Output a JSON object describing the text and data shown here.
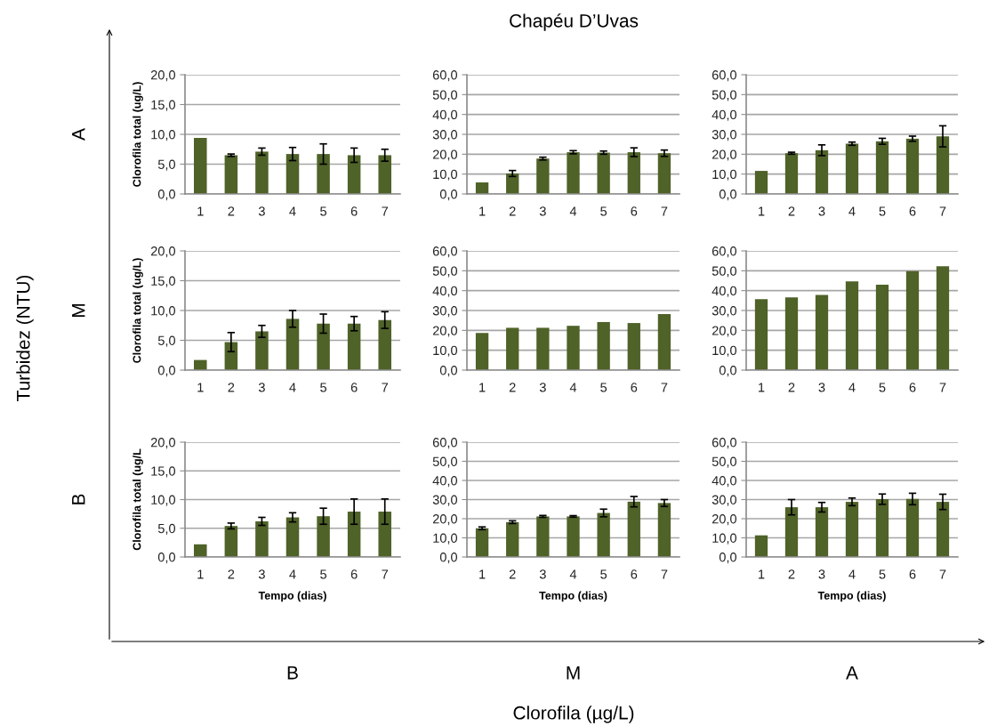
{
  "chart_data": [
    {
      "type": "bar",
      "ylabel": "Clorofila total (ug/L)",
      "categories": [
        "1",
        "2",
        "3",
        "4",
        "5",
        "6",
        "7"
      ],
      "color": "#4f6228",
      "grid": "y",
      "values": [
        9.4,
        6.5,
        7.1,
        6.7,
        6.7,
        6.5,
        6.5
      ],
      "errors": [
        null,
        0.2,
        0.6,
        1.1,
        1.7,
        1.2,
        1.0
      ],
      "ylim": [
        0,
        20
      ],
      "yticks": [
        {
          "value": 0,
          "label": "0,0"
        },
        {
          "value": 5,
          "label": "5,0"
        },
        {
          "value": 10,
          "label": "10,0"
        },
        {
          "value": 15,
          "label": "15,0"
        },
        {
          "value": 20,
          "label": "20,0"
        }
      ]
    },
    {
      "type": "bar",
      "categories": [
        "1",
        "2",
        "3",
        "4",
        "5",
        "6",
        "7"
      ],
      "color": "#4f6228",
      "grid": "y",
      "values": [
        5.8,
        10.3,
        17.8,
        21.0,
        20.8,
        21.0,
        20.5
      ],
      "errors": [
        null,
        1.5,
        0.7,
        0.8,
        0.8,
        2.2,
        1.6
      ],
      "ylim": [
        0,
        60
      ],
      "yticks": [
        {
          "value": 0,
          "label": "0,0"
        },
        {
          "value": 10,
          "label": "10,0"
        },
        {
          "value": 20,
          "label": "20,0"
        },
        {
          "value": 30,
          "label": "30,0"
        },
        {
          "value": 40,
          "label": "40,0"
        },
        {
          "value": 50,
          "label": "50,0"
        },
        {
          "value": 60,
          "label": "60,0"
        }
      ]
    },
    {
      "type": "bar",
      "categories": [
        "1",
        "2",
        "3",
        "4",
        "5",
        "6",
        "7"
      ],
      "color": "#4f6228",
      "grid": "y",
      "values": [
        11.6,
        20.5,
        22.0,
        25.3,
        26.5,
        27.8,
        29.0
      ],
      "errors": [
        null,
        0.5,
        2.7,
        0.8,
        1.5,
        1.3,
        5.3
      ],
      "ylim": [
        0,
        60
      ],
      "yticks": [
        {
          "value": 0,
          "label": "0,0"
        },
        {
          "value": 10,
          "label": "10,0"
        },
        {
          "value": 20,
          "label": "20,0"
        },
        {
          "value": 30,
          "label": "30,0"
        },
        {
          "value": 40,
          "label": "40,0"
        },
        {
          "value": 50,
          "label": "50,0"
        },
        {
          "value": 60,
          "label": "60,0"
        }
      ]
    },
    {
      "type": "bar",
      "ylabel": "Clorofila total (ug/L)",
      "categories": [
        "1",
        "2",
        "3",
        "4",
        "5",
        "6",
        "7"
      ],
      "color": "#4f6228",
      "grid": "y",
      "values": [
        1.7,
        4.7,
        6.5,
        8.6,
        7.8,
        7.8,
        8.4
      ],
      "errors": [
        null,
        1.6,
        1.0,
        1.4,
        1.6,
        1.2,
        1.4
      ],
      "ylim": [
        0,
        20
      ],
      "yticks": [
        {
          "value": 0,
          "label": "0,0"
        },
        {
          "value": 5,
          "label": "5,0"
        },
        {
          "value": 10,
          "label": "10,0"
        },
        {
          "value": 15,
          "label": "15,0"
        },
        {
          "value": 20,
          "label": "20,0"
        }
      ]
    },
    {
      "type": "bar",
      "categories": [
        "1",
        "2",
        "3",
        "4",
        "5",
        "6",
        "7"
      ],
      "color": "#4f6228",
      "grid": "y",
      "values": [
        18.7,
        21.3,
        21.3,
        22.3,
        24.2,
        23.7,
        28.2
      ],
      "ylim": [
        0,
        60
      ],
      "yticks": [
        {
          "value": 0,
          "label": "0,0"
        },
        {
          "value": 10,
          "label": "10,0"
        },
        {
          "value": 20,
          "label": "20,0"
        },
        {
          "value": 30,
          "label": "30,0"
        },
        {
          "value": 40,
          "label": "40,0"
        },
        {
          "value": 50,
          "label": "50,0"
        },
        {
          "value": 60,
          "label": "60,0"
        }
      ]
    },
    {
      "type": "bar",
      "categories": [
        "1",
        "2",
        "3",
        "4",
        "5",
        "6",
        "7"
      ],
      "color": "#4f6228",
      "grid": "y",
      "values": [
        35.7,
        36.6,
        37.8,
        44.7,
        43.0,
        49.8,
        52.3
      ],
      "ylim": [
        0,
        60
      ],
      "yticks": [
        {
          "value": 0,
          "label": "0,0"
        },
        {
          "value": 10,
          "label": "10,0"
        },
        {
          "value": 20,
          "label": "20,0"
        },
        {
          "value": 30,
          "label": "30,0"
        },
        {
          "value": 40,
          "label": "40,0"
        },
        {
          "value": 50,
          "label": "50,0"
        },
        {
          "value": 60,
          "label": "60,0"
        }
      ]
    },
    {
      "type": "bar",
      "ylabel": "Clorofila total (ug/L",
      "xlabel": "Tempo (dias)",
      "categories": [
        "1",
        "2",
        "3",
        "4",
        "5",
        "6",
        "7"
      ],
      "color": "#4f6228",
      "grid": "y",
      "values": [
        2.2,
        5.4,
        6.2,
        6.9,
        7.1,
        7.9,
        7.9
      ],
      "errors": [
        null,
        0.5,
        0.7,
        0.8,
        1.4,
        2.2,
        2.2
      ],
      "ylim": [
        0,
        20
      ],
      "yticks": [
        {
          "value": 0,
          "label": "0,0"
        },
        {
          "value": 5,
          "label": "5,0"
        },
        {
          "value": 10,
          "label": "10,0"
        },
        {
          "value": 15,
          "label": "15,0"
        },
        {
          "value": 20,
          "label": "20,0"
        }
      ]
    },
    {
      "type": "bar",
      "xlabel": "Tempo (dias)",
      "categories": [
        "1",
        "2",
        "3",
        "4",
        "5",
        "6",
        "7"
      ],
      "color": "#4f6228",
      "grid": "y",
      "values": [
        15.0,
        18.2,
        21.2,
        21.2,
        23.0,
        28.9,
        28.2
      ],
      "errors": [
        0.7,
        0.7,
        0.5,
        0.4,
        2.0,
        2.7,
        1.8
      ],
      "ylim": [
        0,
        60
      ],
      "yticks": [
        {
          "value": 0,
          "label": "0,0"
        },
        {
          "value": 10,
          "label": "10,0"
        },
        {
          "value": 20,
          "label": "20,0"
        },
        {
          "value": 30,
          "label": "30,0"
        },
        {
          "value": 40,
          "label": "40,0"
        },
        {
          "value": 50,
          "label": "50,0"
        },
        {
          "value": 60,
          "label": "60,0"
        }
      ]
    },
    {
      "type": "bar",
      "xlabel": "Tempo (dias)",
      "categories": [
        "1",
        "2",
        "3",
        "4",
        "5",
        "6",
        "7"
      ],
      "color": "#4f6228",
      "grid": "y",
      "values": [
        11.3,
        26.0,
        26.0,
        28.8,
        30.2,
        30.3,
        28.8
      ],
      "errors": [
        null,
        4.0,
        2.5,
        2.0,
        2.7,
        3.0,
        4.0
      ],
      "ylim": [
        0,
        60
      ],
      "yticks": [
        {
          "value": 0,
          "label": "0,0"
        },
        {
          "value": 10,
          "label": "10,0"
        },
        {
          "value": 20,
          "label": "20,0"
        },
        {
          "value": 30,
          "label": "30,0"
        },
        {
          "value": 40,
          "label": "40,0"
        },
        {
          "value": 50,
          "label": "50,0"
        },
        {
          "value": 60,
          "label": "60,0"
        }
      ]
    },
    {
      "type": "other",
      "title": "Chapéu D’Uvas",
      "xlabel": "Clorofila (µg/L)",
      "ylabel": "Turbidez (NTU)",
      "annotations": [
        "A",
        "M",
        "B",
        "B",
        "M",
        "A"
      ]
    }
  ]
}
